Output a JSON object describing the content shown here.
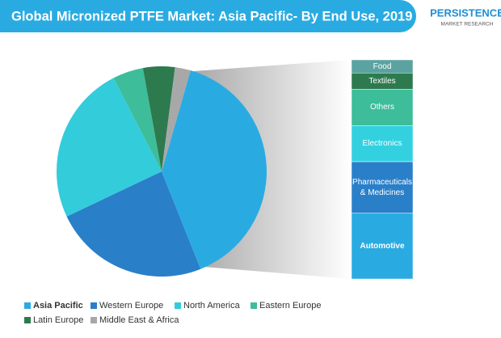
{
  "header": {
    "title": "Global Micronized PTFE Market: Asia Pacific- By End Use, 2019",
    "logo": "PERSISTENCE",
    "logo_sub": "MARKET RESEARCH"
  },
  "chart_data": {
    "type": "pie",
    "categories": [
      "Asia Pacific",
      "Western Europe",
      "North America",
      "Eastern Europe",
      "Latin Europe",
      "Middle East & Africa"
    ],
    "values": [
      39.5,
      24,
      24.5,
      4.7,
      4.9,
      2.4
    ],
    "colors": [
      "#29abe2",
      "#2a7fc9",
      "#33ccdb",
      "#3dbd9a",
      "#2d7a4f",
      "#a8a8a8"
    ],
    "breakdown": {
      "categories": [
        "Food",
        "Textiles",
        "Others",
        "Electronics",
        "Pharmaceuticals & Medicines",
        "Automotive"
      ],
      "values": [
        6,
        7.5,
        16.5,
        16.5,
        23.5,
        30
      ],
      "colors": [
        "#5ba3a0",
        "#2d7a4f",
        "#3dbd9a",
        "#33d1e0",
        "#2a7fc9",
        "#29abe2"
      ]
    }
  }
}
